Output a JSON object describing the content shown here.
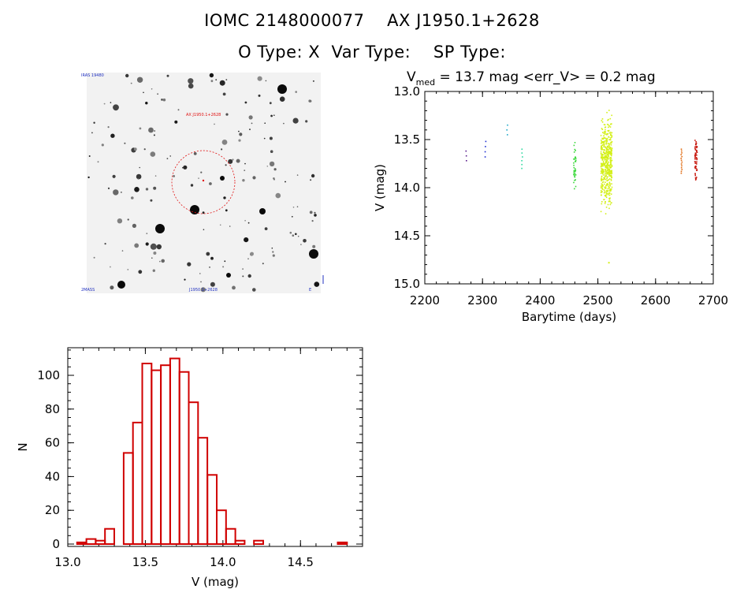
{
  "header": {
    "line1": "IOMC 2148000077    AX J1950.1+2628",
    "line2": "O Type: X  Var Type:    SP Type:"
  },
  "image_panel": {
    "label_top_left": "IRAS 19480",
    "label_center": "AX J1950.1+2628",
    "label_bottom_left": "2MASS",
    "label_bottom_center": "J1950.1+2628",
    "label_bottom_right": "E"
  },
  "lightcurve": {
    "subtitle_v": "V",
    "subtitle_med": "med",
    "subtitle_rest": " = 13.7 mag <err_V> = 0.2 mag"
  },
  "chart_data": [
    {
      "type": "scatter",
      "title": "V_med = 13.7 mag <err_V> = 0.2 mag",
      "xlabel": "Barytime (days)",
      "ylabel": "V (mag)",
      "xlim": [
        2200,
        2700
      ],
      "ylim": [
        15.0,
        13.0
      ],
      "y_inverted": true,
      "xticks": [
        2200,
        2300,
        2400,
        2500,
        2600,
        2700
      ],
      "yticks": [
        13.0,
        13.5,
        14.0,
        14.5,
        15.0
      ],
      "groups": [
        {
          "x": 2272,
          "y_min": 13.62,
          "y_max": 13.72,
          "n": 3,
          "color": "#5a1e8c"
        },
        {
          "x": 2305,
          "y_min": 13.52,
          "y_max": 13.68,
          "n": 4,
          "color": "#1f2fd0"
        },
        {
          "x": 2343,
          "y_min": 13.35,
          "y_max": 13.45,
          "n": 3,
          "color": "#1ea8c8"
        },
        {
          "x": 2369,
          "y_min": 13.6,
          "y_max": 13.8,
          "n": 6,
          "color": "#2ed8a0"
        },
        {
          "x": 2460,
          "y_min": 13.5,
          "y_max": 14.08,
          "n": 40,
          "color": "#3ad83a"
        },
        {
          "x": 2515,
          "y_min": 13.1,
          "y_max": 14.35,
          "n": 500,
          "color": "#d4f01a",
          "outlier": 14.78
        },
        {
          "x": 2645,
          "y_min": 13.6,
          "y_max": 13.85,
          "n": 14,
          "color": "#e06a10"
        },
        {
          "x": 2670,
          "y_min": 13.4,
          "y_max": 14.02,
          "n": 60,
          "color": "#c81a10"
        }
      ]
    },
    {
      "type": "bar",
      "title": "",
      "xlabel": "V (mag)",
      "ylabel": "N",
      "xlim": [
        13.0,
        14.9
      ],
      "ylim": [
        0,
        117
      ],
      "xticks": [
        13.0,
        13.5,
        14.0,
        14.5
      ],
      "yticks": [
        0,
        20,
        40,
        60,
        80,
        100
      ],
      "bin_width": 0.06,
      "bin_starts": [
        13.06,
        13.12,
        13.18,
        13.24,
        13.3,
        13.36,
        13.42,
        13.48,
        13.54,
        13.6,
        13.66,
        13.72,
        13.78,
        13.84,
        13.9,
        13.96,
        14.02,
        14.08,
        14.14,
        14.2,
        14.26,
        14.32,
        14.38,
        14.44,
        14.5,
        14.56,
        14.62,
        14.68,
        14.74,
        14.8
      ],
      "values": [
        1,
        3,
        2,
        9,
        0,
        54,
        72,
        107,
        103,
        106,
        110,
        102,
        84,
        63,
        41,
        20,
        9,
        2,
        0,
        2,
        0,
        0,
        0,
        0,
        0,
        0,
        0,
        0,
        1,
        0
      ],
      "color": "#d00000"
    }
  ]
}
